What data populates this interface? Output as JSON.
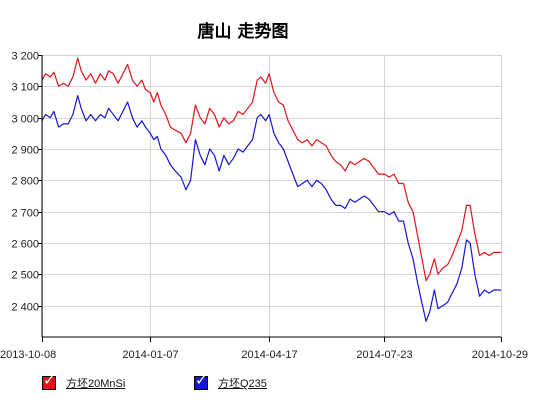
{
  "chart_data": {
    "type": "line",
    "title": "唐山 走势图",
    "ylim": [
      2300,
      3200
    ],
    "yticks": [
      2400,
      2500,
      2600,
      2700,
      2800,
      2900,
      3000,
      3100,
      3200
    ],
    "ytick_labels": [
      "2 400",
      "2 500",
      "2 600",
      "2 700",
      "2 800",
      "2 900",
      "3 000",
      "3 100",
      "3 200"
    ],
    "xlim": [
      "2013-10-08",
      "2014-10-29"
    ],
    "xticks": [
      "2013-10-08",
      "2014-01-07",
      "2014-04-17",
      "2014-07-23",
      "2014-10-29"
    ],
    "grid": true,
    "legend_position": "bottom-left",
    "series": [
      {
        "name": "方坯20MnSi",
        "color": "#e0151b",
        "points": [
          [
            "2013-10-08",
            3120
          ],
          [
            "2013-10-11",
            3140
          ],
          [
            "2013-10-15",
            3130
          ],
          [
            "2013-10-18",
            3145
          ],
          [
            "2013-10-22",
            3100
          ],
          [
            "2013-10-26",
            3110
          ],
          [
            "2013-10-30",
            3100
          ],
          [
            "2013-11-03",
            3130
          ],
          [
            "2013-11-07",
            3190
          ],
          [
            "2013-11-10",
            3150
          ],
          [
            "2013-11-14",
            3120
          ],
          [
            "2013-11-18",
            3140
          ],
          [
            "2013-11-22",
            3110
          ],
          [
            "2013-11-26",
            3140
          ],
          [
            "2013-11-30",
            3120
          ],
          [
            "2013-12-03",
            3150
          ],
          [
            "2013-12-07",
            3140
          ],
          [
            "2013-12-11",
            3110
          ],
          [
            "2013-12-15",
            3140
          ],
          [
            "2013-12-19",
            3170
          ],
          [
            "2013-12-23",
            3120
          ],
          [
            "2013-12-27",
            3100
          ],
          [
            "2013-12-31",
            3120
          ],
          [
            "2014-01-03",
            3090
          ],
          [
            "2014-01-07",
            3080
          ],
          [
            "2014-01-10",
            3050
          ],
          [
            "2014-01-13",
            3080
          ],
          [
            "2014-01-16",
            3040
          ],
          [
            "2014-01-20",
            3010
          ],
          [
            "2014-01-24",
            2970
          ],
          [
            "2014-01-28",
            2960
          ],
          [
            "2014-02-02",
            2950
          ],
          [
            "2014-02-06",
            2920
          ],
          [
            "2014-02-10",
            2950
          ],
          [
            "2014-02-14",
            3040
          ],
          [
            "2014-02-18",
            3000
          ],
          [
            "2014-02-22",
            2980
          ],
          [
            "2014-02-26",
            3030
          ],
          [
            "2014-03-02",
            3010
          ],
          [
            "2014-03-06",
            2970
          ],
          [
            "2014-03-10",
            3000
          ],
          [
            "2014-03-14",
            2980
          ],
          [
            "2014-03-18",
            2990
          ],
          [
            "2014-03-22",
            3020
          ],
          [
            "2014-03-26",
            3010
          ],
          [
            "2014-03-30",
            3030
          ],
          [
            "2014-04-03",
            3050
          ],
          [
            "2014-04-07",
            3120
          ],
          [
            "2014-04-10",
            3130
          ],
          [
            "2014-04-14",
            3110
          ],
          [
            "2014-04-17",
            3140
          ],
          [
            "2014-04-21",
            3080
          ],
          [
            "2014-04-25",
            3050
          ],
          [
            "2014-04-29",
            3040
          ],
          [
            "2014-05-03",
            2990
          ],
          [
            "2014-05-07",
            2960
          ],
          [
            "2014-05-11",
            2930
          ],
          [
            "2014-05-15",
            2920
          ],
          [
            "2014-05-19",
            2930
          ],
          [
            "2014-05-23",
            2910
          ],
          [
            "2014-05-27",
            2930
          ],
          [
            "2014-05-31",
            2920
          ],
          [
            "2014-06-04",
            2910
          ],
          [
            "2014-06-08",
            2880
          ],
          [
            "2014-06-12",
            2860
          ],
          [
            "2014-06-16",
            2850
          ],
          [
            "2014-06-20",
            2830
          ],
          [
            "2014-06-24",
            2860
          ],
          [
            "2014-06-28",
            2850
          ],
          [
            "2014-07-02",
            2860
          ],
          [
            "2014-07-06",
            2870
          ],
          [
            "2014-07-10",
            2860
          ],
          [
            "2014-07-14",
            2840
          ],
          [
            "2014-07-18",
            2820
          ],
          [
            "2014-07-23",
            2820
          ],
          [
            "2014-07-27",
            2810
          ],
          [
            "2014-07-31",
            2820
          ],
          [
            "2014-08-04",
            2790
          ],
          [
            "2014-08-08",
            2790
          ],
          [
            "2014-08-12",
            2730
          ],
          [
            "2014-08-16",
            2700
          ],
          [
            "2014-08-20",
            2620
          ],
          [
            "2014-08-24",
            2540
          ],
          [
            "2014-08-27",
            2480
          ],
          [
            "2014-08-30",
            2500
          ],
          [
            "2014-09-03",
            2550
          ],
          [
            "2014-09-06",
            2500
          ],
          [
            "2014-09-10",
            2520
          ],
          [
            "2014-09-14",
            2530
          ],
          [
            "2014-09-18",
            2560
          ],
          [
            "2014-09-22",
            2600
          ],
          [
            "2014-09-26",
            2640
          ],
          [
            "2014-09-30",
            2720
          ],
          [
            "2014-10-03",
            2720
          ],
          [
            "2014-10-07",
            2630
          ],
          [
            "2014-10-11",
            2560
          ],
          [
            "2014-10-15",
            2570
          ],
          [
            "2014-10-19",
            2560
          ],
          [
            "2014-10-23",
            2570
          ],
          [
            "2014-10-29",
            2570
          ]
        ]
      },
      {
        "name": "方坯Q235",
        "color": "#1518d0",
        "points": [
          [
            "2013-10-08",
            2990
          ],
          [
            "2013-10-11",
            3010
          ],
          [
            "2013-10-15",
            3000
          ],
          [
            "2013-10-18",
            3020
          ],
          [
            "2013-10-22",
            2970
          ],
          [
            "2013-10-26",
            2980
          ],
          [
            "2013-10-30",
            2980
          ],
          [
            "2013-11-03",
            3010
          ],
          [
            "2013-11-07",
            3070
          ],
          [
            "2013-11-10",
            3030
          ],
          [
            "2013-11-14",
            2990
          ],
          [
            "2013-11-18",
            3010
          ],
          [
            "2013-11-22",
            2990
          ],
          [
            "2013-11-26",
            3010
          ],
          [
            "2013-11-30",
            3000
          ],
          [
            "2013-12-03",
            3030
          ],
          [
            "2013-12-07",
            3010
          ],
          [
            "2013-12-11",
            2990
          ],
          [
            "2013-12-15",
            3020
          ],
          [
            "2013-12-19",
            3050
          ],
          [
            "2013-12-23",
            3000
          ],
          [
            "2013-12-27",
            2970
          ],
          [
            "2013-12-31",
            2990
          ],
          [
            "2014-01-03",
            2970
          ],
          [
            "2014-01-07",
            2950
          ],
          [
            "2014-01-10",
            2930
          ],
          [
            "2014-01-13",
            2940
          ],
          [
            "2014-01-16",
            2900
          ],
          [
            "2014-01-20",
            2880
          ],
          [
            "2014-01-24",
            2850
          ],
          [
            "2014-01-28",
            2830
          ],
          [
            "2014-02-02",
            2810
          ],
          [
            "2014-02-06",
            2770
          ],
          [
            "2014-02-10",
            2800
          ],
          [
            "2014-02-14",
            2930
          ],
          [
            "2014-02-18",
            2880
          ],
          [
            "2014-02-22",
            2850
          ],
          [
            "2014-02-26",
            2900
          ],
          [
            "2014-03-02",
            2880
          ],
          [
            "2014-03-06",
            2830
          ],
          [
            "2014-03-10",
            2880
          ],
          [
            "2014-03-14",
            2850
          ],
          [
            "2014-03-18",
            2870
          ],
          [
            "2014-03-22",
            2900
          ],
          [
            "2014-03-26",
            2890
          ],
          [
            "2014-03-30",
            2910
          ],
          [
            "2014-04-03",
            2930
          ],
          [
            "2014-04-07",
            3000
          ],
          [
            "2014-04-10",
            3010
          ],
          [
            "2014-04-14",
            2990
          ],
          [
            "2014-04-17",
            3010
          ],
          [
            "2014-04-21",
            2950
          ],
          [
            "2014-04-25",
            2920
          ],
          [
            "2014-04-29",
            2900
          ],
          [
            "2014-05-03",
            2860
          ],
          [
            "2014-05-07",
            2820
          ],
          [
            "2014-05-11",
            2780
          ],
          [
            "2014-05-15",
            2790
          ],
          [
            "2014-05-19",
            2800
          ],
          [
            "2014-05-23",
            2780
          ],
          [
            "2014-05-27",
            2800
          ],
          [
            "2014-05-31",
            2790
          ],
          [
            "2014-06-04",
            2770
          ],
          [
            "2014-06-08",
            2740
          ],
          [
            "2014-06-12",
            2720
          ],
          [
            "2014-06-16",
            2720
          ],
          [
            "2014-06-20",
            2710
          ],
          [
            "2014-06-24",
            2740
          ],
          [
            "2014-06-28",
            2730
          ],
          [
            "2014-07-02",
            2740
          ],
          [
            "2014-07-06",
            2750
          ],
          [
            "2014-07-10",
            2740
          ],
          [
            "2014-07-14",
            2720
          ],
          [
            "2014-07-18",
            2700
          ],
          [
            "2014-07-23",
            2700
          ],
          [
            "2014-07-27",
            2690
          ],
          [
            "2014-07-31",
            2700
          ],
          [
            "2014-08-04",
            2670
          ],
          [
            "2014-08-08",
            2670
          ],
          [
            "2014-08-12",
            2600
          ],
          [
            "2014-08-16",
            2550
          ],
          [
            "2014-08-20",
            2470
          ],
          [
            "2014-08-24",
            2400
          ],
          [
            "2014-08-27",
            2350
          ],
          [
            "2014-08-30",
            2380
          ],
          [
            "2014-09-03",
            2450
          ],
          [
            "2014-09-06",
            2390
          ],
          [
            "2014-09-10",
            2400
          ],
          [
            "2014-09-14",
            2410
          ],
          [
            "2014-09-18",
            2440
          ],
          [
            "2014-09-22",
            2470
          ],
          [
            "2014-09-26",
            2520
          ],
          [
            "2014-09-30",
            2610
          ],
          [
            "2014-10-03",
            2600
          ],
          [
            "2014-10-07",
            2500
          ],
          [
            "2014-10-11",
            2430
          ],
          [
            "2014-10-15",
            2450
          ],
          [
            "2014-10-19",
            2440
          ],
          [
            "2014-10-23",
            2450
          ],
          [
            "2014-10-29",
            2450
          ]
        ]
      }
    ]
  }
}
